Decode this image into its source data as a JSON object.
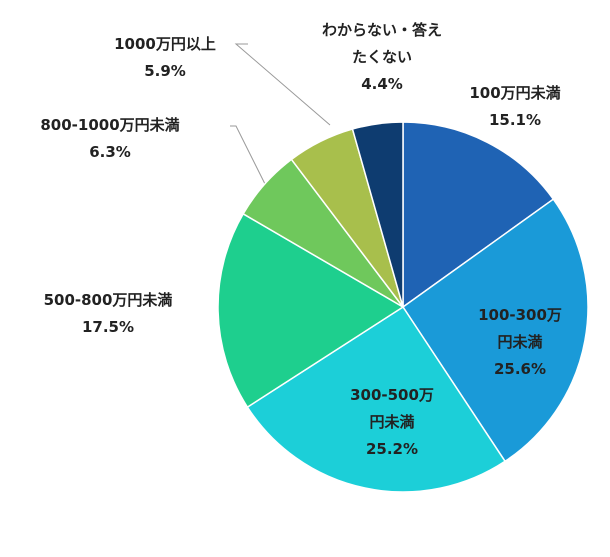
{
  "chart_data": {
    "type": "pie",
    "categories": [
      "100万円未満",
      "100-300万\n円未満",
      "300-500万\n円未満",
      "500-800万円未満",
      "800-1000万円未満",
      "1000万円以上",
      "わからない・答え\nたくない"
    ],
    "values": [
      15.1,
      25.6,
      25.2,
      17.5,
      6.3,
      5.9,
      4.4
    ],
    "value_labels": [
      "15.1%",
      "25.6%",
      "25.2%",
      "17.5%",
      "6.3%",
      "5.9%",
      "4.4%"
    ],
    "colors": [
      "#1f63b4",
      "#1a9ad8",
      "#1ccfd8",
      "#1ecf8e",
      "#6fc85c",
      "#a8bf4c",
      "#0e3c70"
    ]
  }
}
